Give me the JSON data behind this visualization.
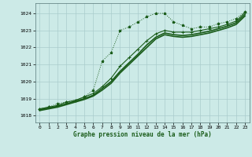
{
  "background_color": "#cceae7",
  "grid_color": "#aacccc",
  "line_color": "#1a5c1a",
  "xlabel": "Graphe pression niveau de la mer (hPa)",
  "ylabel_ticks": [
    1018,
    1019,
    1020,
    1021,
    1022,
    1023,
    1024
  ],
  "xlim": [
    -0.5,
    23.5
  ],
  "ylim": [
    1017.6,
    1024.6
  ],
  "xticks": [
    0,
    1,
    2,
    3,
    4,
    5,
    6,
    7,
    8,
    9,
    10,
    11,
    12,
    13,
    14,
    15,
    16,
    17,
    18,
    19,
    20,
    21,
    22,
    23
  ],
  "series": [
    {
      "x": [
        0,
        1,
        2,
        3,
        4,
        5,
        6,
        7,
        8,
        9,
        10,
        11,
        12,
        13,
        14,
        15,
        16,
        17,
        18,
        19,
        20,
        21,
        22,
        23
      ],
      "y": [
        1018.4,
        1018.5,
        1018.7,
        1018.8,
        1018.9,
        1019.1,
        1019.5,
        1021.2,
        1021.7,
        1023.0,
        1023.2,
        1023.5,
        1023.8,
        1024.0,
        1024.0,
        1023.5,
        1023.3,
        1023.1,
        1023.2,
        1023.2,
        1023.4,
        1023.5,
        1023.7,
        1024.1
      ],
      "style": "dotted",
      "marker": "*",
      "markersize": 2.5,
      "linewidth": 0.7
    },
    {
      "x": [
        0,
        1,
        2,
        3,
        4,
        5,
        6,
        7,
        8,
        9,
        10,
        11,
        12,
        13,
        14,
        15,
        16,
        17,
        18,
        19,
        20,
        21,
        22,
        23
      ],
      "y": [
        1018.4,
        1018.5,
        1018.6,
        1018.8,
        1018.9,
        1019.1,
        1019.3,
        1019.7,
        1020.2,
        1020.9,
        1021.4,
        1021.9,
        1022.4,
        1022.8,
        1023.0,
        1022.9,
        1022.9,
        1022.9,
        1023.0,
        1023.1,
        1023.2,
        1023.35,
        1023.55,
        1024.05
      ],
      "style": "solid",
      "marker": "+",
      "markersize": 3.0,
      "linewidth": 0.8
    },
    {
      "x": [
        0,
        1,
        2,
        3,
        4,
        5,
        6,
        7,
        8,
        9,
        10,
        11,
        12,
        13,
        14,
        15,
        16,
        17,
        18,
        19,
        20,
        21,
        22,
        23
      ],
      "y": [
        1018.35,
        1018.45,
        1018.55,
        1018.7,
        1018.85,
        1019.0,
        1019.2,
        1019.6,
        1020.0,
        1020.6,
        1021.1,
        1021.6,
        1022.15,
        1022.6,
        1022.85,
        1022.75,
        1022.7,
        1022.75,
        1022.85,
        1022.95,
        1023.1,
        1023.25,
        1023.45,
        1023.95
      ],
      "style": "solid",
      "marker": null,
      "markersize": 0,
      "linewidth": 1.2
    },
    {
      "x": [
        0,
        1,
        2,
        3,
        4,
        5,
        6,
        7,
        8,
        9,
        10,
        11,
        12,
        13,
        14,
        15,
        16,
        17,
        18,
        19,
        20,
        21,
        22,
        23
      ],
      "y": [
        1018.3,
        1018.4,
        1018.5,
        1018.65,
        1018.8,
        1018.95,
        1019.15,
        1019.5,
        1019.9,
        1020.5,
        1021.0,
        1021.5,
        1022.0,
        1022.5,
        1022.75,
        1022.65,
        1022.6,
        1022.65,
        1022.75,
        1022.85,
        1023.0,
        1023.15,
        1023.35,
        1023.85
      ],
      "style": "solid",
      "marker": null,
      "markersize": 0,
      "linewidth": 1.2
    }
  ]
}
